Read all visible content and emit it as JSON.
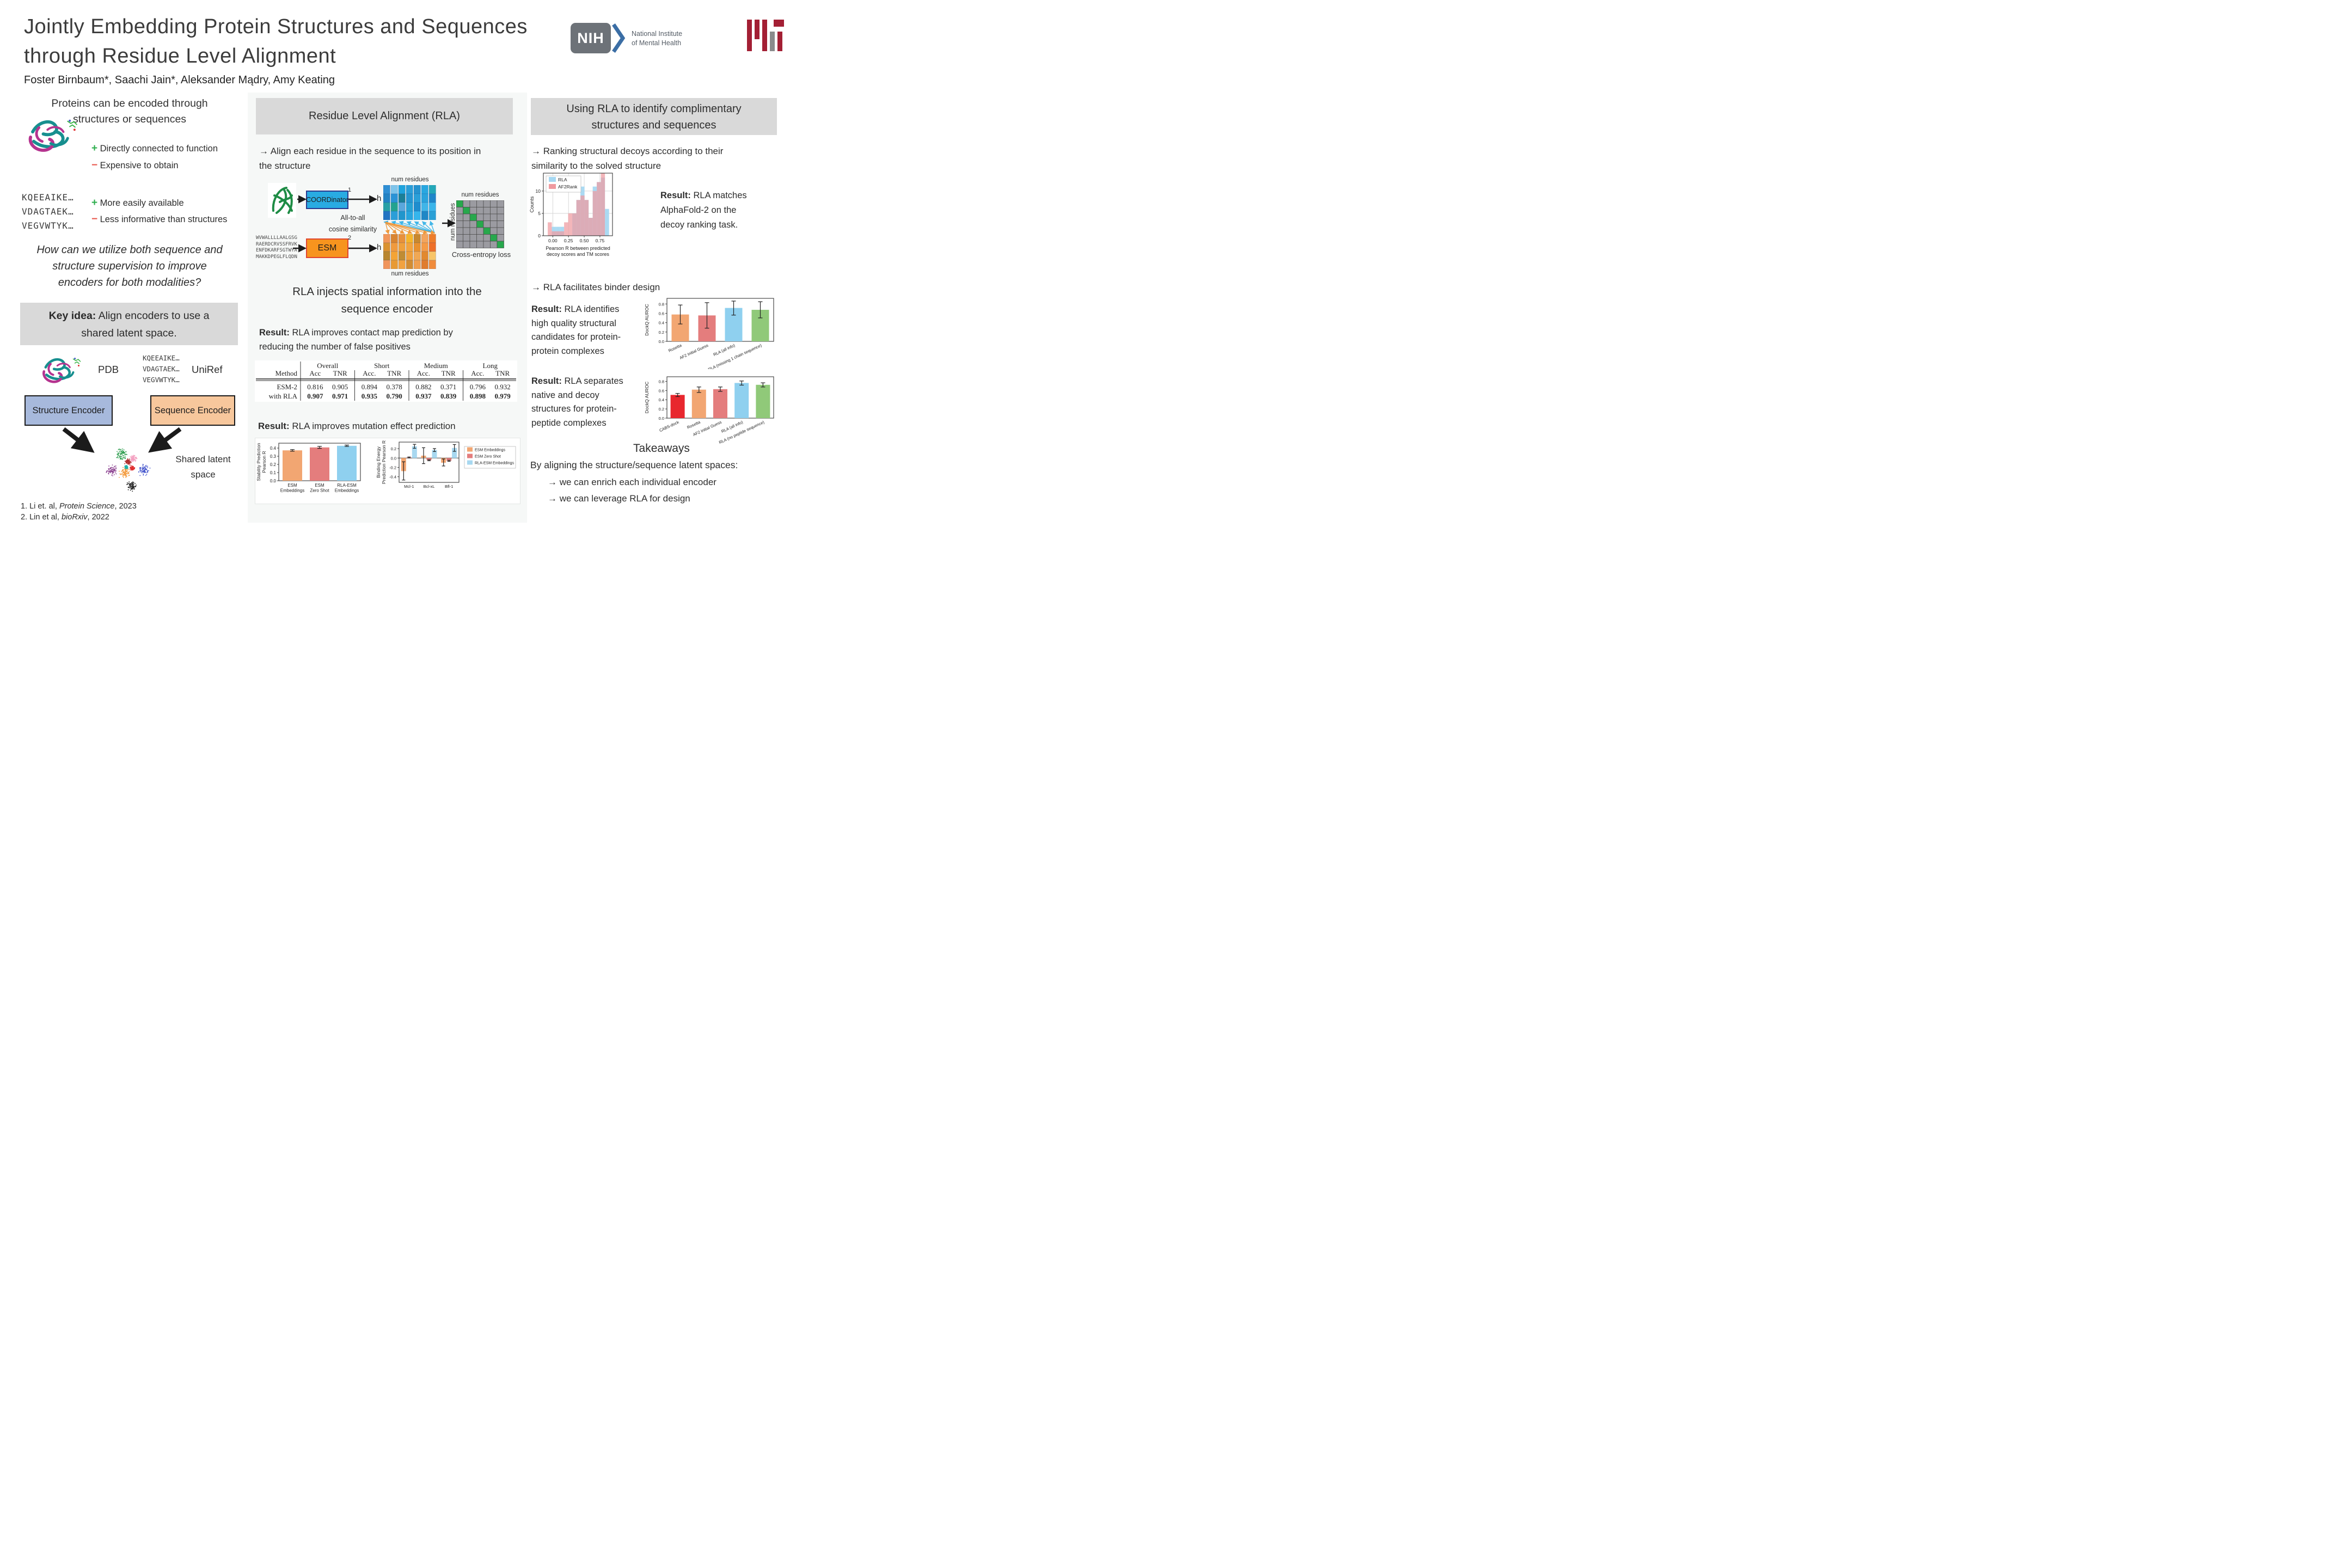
{
  "header": {
    "title_line1": "Jointly Embedding Protein Structures and Sequences",
    "title_line2": "through Residue Level Alignment",
    "authors": "Foster Birnbaum*, Saachi Jain*, Aleksander Mądry, Amy Keating",
    "nih": {
      "acronym": "NIH",
      "name_line1": "National Institute",
      "name_line2": "of Mental Health"
    }
  },
  "colors": {
    "header_box": "#d9d9d9",
    "structure_encoder": "#a7b9dc",
    "sequence_encoder": "#f7c79c",
    "coordinator": "#29abe2",
    "esm": "#f7941e",
    "plus": "#2eae4e",
    "minus": "#e8554a",
    "mit_red": "#a31f34",
    "mit_gray": "#8a8b8c",
    "nih_gray": "#6d7278",
    "nih_blue": "#3b6ea5",
    "rla_hist": "#a6d8f2",
    "af2_hist": "#ef9aa0"
  },
  "left": {
    "section1_l1": "Proteins can be encoded through",
    "section1_l2": "structures or sequences",
    "structure_pro": "Directly connected to function",
    "structure_con": "Expensive to obtain",
    "seq_lines": [
      "KQEEAIKE…",
      "VDAGTAEK…",
      "VEGVWTYK…"
    ],
    "sequence_pro": "More easily available",
    "sequence_con": "Less informative than structures",
    "question_l1": "How can we utilize both sequence and",
    "question_l2": "structure supervision to improve",
    "question_l3": "encoders for both modalities?",
    "key_idea_bold": "Key idea:",
    "key_idea_rest": " Align encoders to use a",
    "key_idea_l2": "shared latent space.",
    "pdb_label": "PDB",
    "uniref_label": "UniRef",
    "uniref_lines": [
      "KQEEAIKE…",
      "VDAGTAEK…",
      "VEGVWTYK…"
    ],
    "structure_encoder": "Structure Encoder",
    "sequence_encoder": "Sequence Encoder",
    "latent_l1": "Shared latent",
    "latent_l2": "space",
    "fn1_pre": "1.  Li et. al, ",
    "fn1_it": "Protein Science",
    "fn1_post": ", 2023",
    "fn2_pre": "2.  Lin et al, ",
    "fn2_it": "bioRxiv",
    "fn2_post": ", 2022"
  },
  "middle": {
    "panel_title": "Residue Level Alignment (RLA)",
    "bullet1_l1": "→ Align each residue in the sequence to its position in",
    "bullet1_l2": "the structure",
    "diagram": {
      "coordinator": "COORDinator",
      "coordinator_sup": "1",
      "esm": "ESM",
      "esm_sup": "2",
      "h1": "h",
      "h2": "h",
      "num_res_top": "num residues",
      "num_res_bottom": "num residues",
      "num_res_ce_top": "num residues",
      "num_res_ce_side": "num residues",
      "alltoall_l1": "All-to-all",
      "alltoall_l2": "cosine similarity",
      "cross_entropy": "Cross-entropy loss",
      "esm_seq": [
        "WVWALLLLAALGSG",
        "RAERDCRVSSFRVK",
        "ENFDKARFSGTWYA",
        "MAKKDPEGLFLQDN"
      ]
    },
    "heading2_l1": "RLA injects spatial information into the",
    "heading2_l2": "sequence encoder",
    "result1_bold": "Result:",
    "result1_rest": " RLA improves contact map prediction by",
    "result1_l2": "reducing the number of false positives",
    "result2_bold": "Result:",
    "result2_rest": " RLA improves mutation effect prediction"
  },
  "right": {
    "panel_title_l1": "Using RLA to identify complimentary",
    "panel_title_l2": "structures and sequences",
    "bullet1_l1": "→ Ranking structural decoys according to their",
    "bullet1_l2": "similarity to the solved structure",
    "result1_bold": "Result:",
    "result1_l1": " RLA matches",
    "result1_l2": "AlphaFold-2 on the",
    "result1_l3": "decoy ranking task.",
    "bullet2": "→ RLA facilitates binder design",
    "result2_bold": "Result:",
    "result2_l1": " RLA identifies",
    "result2_l2": "high quality structural",
    "result2_l3": "candidates for protein-",
    "result2_l4": "protein complexes",
    "result3_bold": "Result:",
    "result3_l1": " RLA separates",
    "result3_l2": "native and decoy",
    "result3_l3": "structures for protein-",
    "result3_l4": "peptide complexes",
    "takeaways_title": "Takeaways",
    "takeaways_intro": "By aligning the structure/sequence latent spaces:",
    "takeaway1": "→ we can enrich each individual encoder",
    "takeaway2": "→ we can leverage RLA for design"
  },
  "chart_data": [
    {
      "type": "table",
      "col_groups": [
        "Overall",
        "Short",
        "Medium",
        "Long"
      ],
      "sub_cols": [
        "Acc",
        "TNR",
        "Acc.",
        "TNR",
        "Acc.",
        "TNR",
        "Acc.",
        "TNR"
      ],
      "row_header": "Method",
      "rows": [
        {
          "method": "ESM-2",
          "bold": false,
          "values": [
            "0.816",
            "0.905",
            "0.894",
            "0.378",
            "0.882",
            "0.371",
            "0.796",
            "0.932"
          ]
        },
        {
          "method": "with RLA",
          "bold": true,
          "values": [
            "0.907",
            "0.971",
            "0.935",
            "0.790",
            "0.937",
            "0.839",
            "0.898",
            "0.979"
          ]
        }
      ]
    },
    {
      "type": "bar",
      "ylabel": "Stability Prediction\nPearson R",
      "categories": [
        "ESM\nEmbeddings",
        "ESM\nZero Shot",
        "RLA-ESM\nEmbeddings"
      ],
      "values": [
        0.372,
        0.408,
        0.428
      ],
      "err_low": [
        0.362,
        0.396,
        0.42
      ],
      "err_high": [
        0.382,
        0.421,
        0.437
      ],
      "colors": [
        "#f2a672",
        "#e47d7d",
        "#8fd0ef"
      ],
      "ylim": [
        0,
        0.46
      ],
      "yticks": [
        0.0,
        0.1,
        0.2,
        0.3,
        0.4
      ]
    },
    {
      "type": "grouped_bar",
      "ylabel": "Binding Energy\nPrediction Pearson R",
      "categories": [
        "Mcl-1",
        "Bcl-xL",
        "Bfl-1"
      ],
      "series": [
        {
          "name": "ESM Embeddings",
          "color": "#f2a672",
          "values": [
            -0.28,
            0.05,
            -0.1
          ],
          "err_low": [
            -0.47,
            -0.12,
            -0.17
          ],
          "err_high": [
            -0.08,
            0.22,
            -0.02
          ]
        },
        {
          "name": "ESM Zero Shot",
          "color": "#e47d7d",
          "values": [
            0.012,
            -0.048,
            -0.06
          ],
          "err_low": [
            0.002,
            -0.058,
            -0.072
          ],
          "err_high": [
            0.022,
            -0.038,
            -0.048
          ]
        },
        {
          "name": "RLA-ESM Embeddings",
          "color": "#a8d8f0",
          "values": [
            0.25,
            0.17,
            0.215
          ],
          "err_low": [
            0.208,
            0.138,
            0.142
          ],
          "err_high": [
            0.292,
            0.202,
            0.288
          ]
        }
      ],
      "ylim": [
        -0.52,
        0.34
      ],
      "yticks": [
        -0.4,
        -0.2,
        0.0,
        0.2
      ],
      "legend_position": "right"
    },
    {
      "type": "histogram",
      "ylabel": "Counts",
      "xlabel": "Pearson R between predicted\ndecoy scores and TM scores",
      "bin_start": -0.08,
      "bin_width": 0.065,
      "series": [
        {
          "name": "RLA",
          "color": "#a6d8f2",
          "counts": [
            0,
            2,
            2,
            2,
            0,
            0,
            5,
            8,
            11,
            8,
            4,
            11,
            12,
            13,
            6
          ]
        },
        {
          "name": "AF2Rank",
          "color": "#ef9aa0",
          "counts": [
            3,
            1,
            1,
            1,
            3,
            5,
            5,
            8,
            9,
            8,
            4,
            10,
            12,
            14,
            0
          ]
        }
      ],
      "ylim": [
        0,
        14
      ],
      "yticks": [
        0,
        5,
        10
      ],
      "xticks": [
        0.0,
        0.25,
        0.5,
        0.75
      ],
      "legend_position": "upper left"
    },
    {
      "type": "bar",
      "ylabel": "DockQ AUROC",
      "categories": [
        "Rosetta",
        "AF2 Initial Guess",
        "RLA (all info)",
        "RLA (missing 1 chain sequence)"
      ],
      "values": [
        0.575,
        0.555,
        0.715,
        0.675
      ],
      "err_low": [
        0.372,
        0.282,
        0.562,
        0.502
      ],
      "err_high": [
        0.778,
        0.828,
        0.862,
        0.848
      ],
      "colors": [
        "#f2a672",
        "#e47d7d",
        "#8fd0ef",
        "#90c979"
      ],
      "ylim": [
        0,
        0.92
      ],
      "yticks": [
        0.0,
        0.2,
        0.4,
        0.6,
        0.8
      ],
      "xtick_rotation": -25
    },
    {
      "type": "bar",
      "ylabel": "DockQ AUROC",
      "categories": [
        "CABS-dock",
        "Rosetta",
        "AF2 Initial Guess",
        "RLA (all info)",
        "RLA (no peptide sequence)"
      ],
      "values": [
        0.505,
        0.62,
        0.63,
        0.765,
        0.725
      ],
      "err_low": [
        0.468,
        0.558,
        0.582,
        0.718,
        0.678
      ],
      "err_high": [
        0.538,
        0.678,
        0.678,
        0.808,
        0.768
      ],
      "colors": [
        "#e8272e",
        "#f2a672",
        "#e47d7d",
        "#8fd0ef",
        "#90c979"
      ],
      "ylim": [
        0,
        0.9
      ],
      "yticks": [
        0.0,
        0.2,
        0.4,
        0.6,
        0.8
      ],
      "xtick_rotation": -25
    }
  ]
}
